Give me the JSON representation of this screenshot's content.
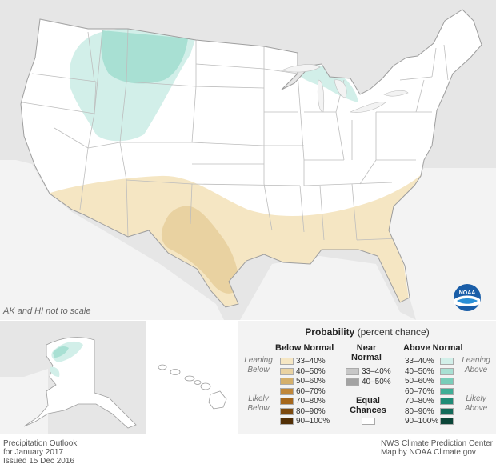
{
  "scale_note": "AK and HI not to scale",
  "legend": {
    "title_bold": "Probability",
    "title_rest": " (percent chance)",
    "below": {
      "heading": "Below Normal",
      "leaning": [
        "Leaning",
        "Below"
      ],
      "likely": [
        "Likely",
        "Below"
      ],
      "items": [
        {
          "label": "33–40%",
          "color": "#f5e6c3"
        },
        {
          "label": "40–50%",
          "color": "#e9d2a1"
        },
        {
          "label": "50–60%",
          "color": "#d4af6b"
        },
        {
          "label": "60–70%",
          "color": "#c0873a"
        },
        {
          "label": "70–80%",
          "color": "#a5671c"
        },
        {
          "label": "80–90%",
          "color": "#7c4a0f"
        },
        {
          "label": "90–100%",
          "color": "#522f06"
        }
      ]
    },
    "near": {
      "heading": [
        "Near",
        "Normal"
      ],
      "items": [
        {
          "label": "33–40%",
          "color": "#c7c7c7"
        },
        {
          "label": "40–50%",
          "color": "#a3a3a3"
        }
      ]
    },
    "equal": {
      "label": [
        "Equal",
        "Chances"
      ],
      "color": "#ffffff"
    },
    "above": {
      "heading": "Above Normal",
      "leaning": [
        "Leaning",
        "Above"
      ],
      "likely": [
        "Likely",
        "Above"
      ],
      "items": [
        {
          "label": "33–40%",
          "color": "#d2efe9"
        },
        {
          "label": "40–50%",
          "color": "#a8e0d3"
        },
        {
          "label": "50–60%",
          "color": "#79cdb9"
        },
        {
          "label": "60–70%",
          "color": "#3fae96"
        },
        {
          "label": "70–80%",
          "color": "#218c77"
        },
        {
          "label": "80–90%",
          "color": "#136b5a"
        },
        {
          "label": "90–100%",
          "color": "#0b4538"
        }
      ]
    }
  },
  "footer": {
    "left": [
      "Precipitation Outlook",
      "for January 2017",
      "Issued 15 Dec 2016"
    ],
    "right": [
      "NWS Climate Prediction Center",
      "Map by NOAA Climate.gov"
    ]
  },
  "logo_text": "NOAA"
}
